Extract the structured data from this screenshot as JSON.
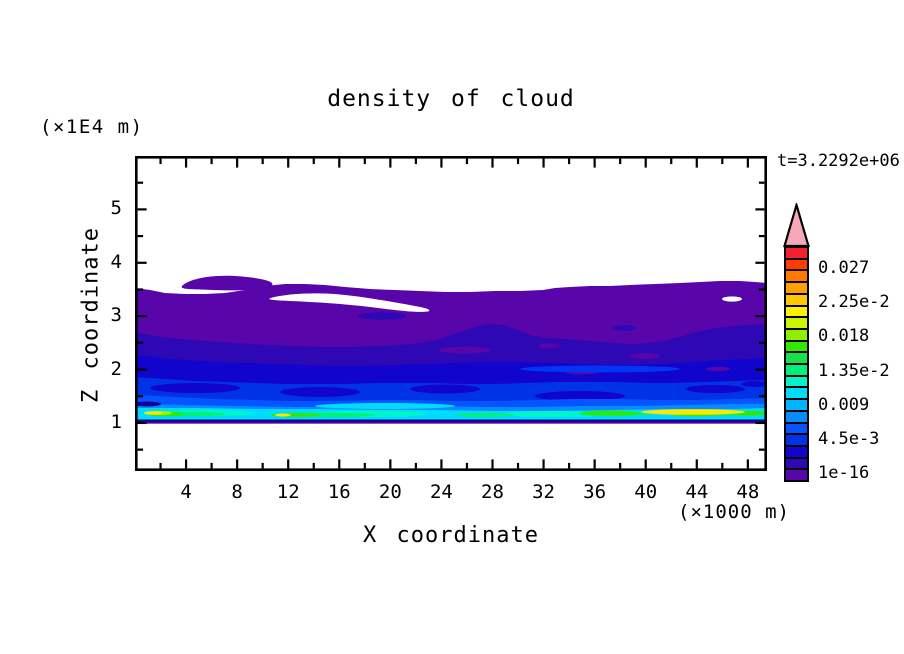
{
  "title": "density of cloud",
  "time_label": "t=3.2292e+06",
  "units": {
    "z": "(×1E4 m)",
    "x": "(×1000 m)"
  },
  "axes": {
    "x": {
      "label": "X coordinate",
      "tick_labels": [
        "4",
        "8",
        "12",
        "16",
        "20",
        "24",
        "28",
        "32",
        "36",
        "40",
        "44",
        "48"
      ],
      "minor_tick_step": 2,
      "range_x1000m": [
        0,
        49.5
      ]
    },
    "z": {
      "label": "Z coordinate",
      "tick_labels": [
        "1",
        "2",
        "3",
        "4",
        "5"
      ],
      "minor_tick_step": 0.5,
      "range_x1E4m": [
        0.1,
        6.0
      ]
    }
  },
  "colorbar": {
    "tick_labels": [
      "0.027",
      "2.25e-2",
      "0.018",
      "1.35e-2",
      "0.009",
      "4.5e-3",
      "1e-16"
    ],
    "segment_colors_bottom_to_top": [
      "#5806aa",
      "#2d08b4",
      "#1104cc",
      "#0133e6",
      "#0455ff",
      "#068cff",
      "#00b4ff",
      "#00dcff",
      "#00f6c8",
      "#00f07a",
      "#17e04a",
      "#30e800",
      "#8cf000",
      "#c8f500",
      "#fff200",
      "#ffc800",
      "#ffa000",
      "#ff7800",
      "#ff3c00",
      "#f5202d"
    ],
    "overflow_arrow_color": "#f7a8b8",
    "outline_color": "#000000"
  },
  "plot_bg": "#ffffff",
  "chart_data": {
    "type": "heatmap",
    "subtype": "filled_contour",
    "title": "density of cloud",
    "xlabel": "X coordinate (×1000 m)",
    "ylabel": "Z coordinate (×1E4 m)",
    "x_range": [
      0,
      49.5
    ],
    "z_range": [
      0.1,
      6.0
    ],
    "time_label": "t=3.2292e+06",
    "contour_min": "1e-16",
    "contour_step": 0.0015,
    "contour_max": 0.03,
    "colorbar_tick_values": [
      "0.027",
      "2.25e-2",
      "0.018",
      "1.35e-2",
      "0.009",
      "4.5e-3",
      "1e-16"
    ],
    "cloud_top_edge": {
      "x": [
        0,
        5,
        10,
        14,
        18,
        23,
        28,
        32,
        36,
        40,
        44,
        47,
        49.5
      ],
      "z": [
        3.53,
        3.42,
        3.56,
        3.6,
        3.57,
        3.49,
        3.47,
        3.47,
        3.56,
        3.58,
        3.62,
        3.65,
        3.62
      ]
    },
    "cloud_base_z": 1.0,
    "field_summary": [
      {
        "feature": "clear air above cloud",
        "z_from": 3.6,
        "z_to": 6.0,
        "value": "0 (white)"
      },
      {
        "feature": "cloud top band",
        "z_from": 2.4,
        "z_to": 3.6,
        "value": "1e-16 to 1.5e-3 (purple)",
        "notes": "white hole X=11-23 at Z=3.2-3.4; detached purple sliver X=4-11 at Z=3.55-3.7; small white hole near X=46, Z=3.3"
      },
      {
        "feature": "mid cloud band",
        "z_from": 1.9,
        "z_to": 2.5,
        "value": "1.5e-3 to 3e-3 (indigo)",
        "notes": "purple inclusions near X=25-29, X=32, X=39-41"
      },
      {
        "feature": "lower cloud",
        "z_from": 1.3,
        "z_to": 2.0,
        "value": "3e-3 to 7.5e-3 (mottled blues)"
      },
      {
        "feature": "cloud base streaks",
        "z_from": 1.05,
        "z_to": 1.35,
        "value": "7.5e-3 to 2.4e-2 (cyan, turquoise, green, yellow streaks)",
        "notes": "strongest yellow maximum near X=44-49 at Z=1.1, smaller maxima near X=1-2 and X=12"
      },
      {
        "feature": "surface boundary line",
        "z_from": 0.97,
        "z_to": 1.03,
        "value": "thin dark navy/purple line at Z=1"
      },
      {
        "feature": "below cloud base",
        "z_from": 0.1,
        "z_to": 0.97,
        "value": "0 (white)"
      }
    ]
  }
}
